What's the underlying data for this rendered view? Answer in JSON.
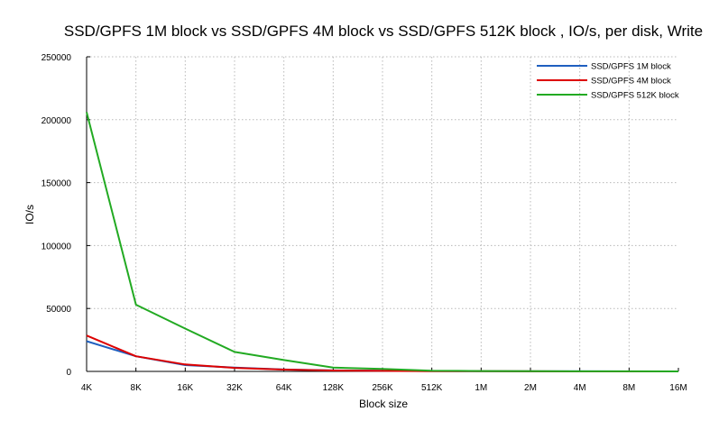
{
  "chart_data": {
    "type": "line",
    "title": "SSD/GPFS 1M block vs SSD/GPFS 4M block vs SSD/GPFS 512K block , IO/s, per disk, Write",
    "xlabel": "Block size",
    "ylabel": "IO/s",
    "categories": [
      "4K",
      "8K",
      "16K",
      "32K",
      "64K",
      "128K",
      "256K",
      "512K",
      "1M",
      "2M",
      "4M",
      "8M",
      "16M"
    ],
    "ylim": [
      0,
      250000
    ],
    "yticks": [
      0,
      50000,
      100000,
      150000,
      200000,
      250000
    ],
    "grid": true,
    "legend_position": "top-right",
    "series": [
      {
        "name": "SSD/GPFS 1M block",
        "color": "#1f5fbf",
        "values": [
          24000,
          12000,
          5000,
          3000,
          1500,
          800,
          500,
          300,
          150,
          80,
          40,
          20,
          10
        ]
      },
      {
        "name": "SSD/GPFS 4M block",
        "color": "#dd0000",
        "values": [
          28500,
          12000,
          5500,
          2800,
          1400,
          700,
          400,
          250,
          120,
          60,
          30,
          15,
          8
        ]
      },
      {
        "name": "SSD/GPFS 512K block",
        "color": "#22aa22",
        "values": [
          206000,
          53000,
          34000,
          15500,
          9000,
          3000,
          2000,
          600,
          300,
          150,
          80,
          40,
          20
        ]
      }
    ]
  }
}
